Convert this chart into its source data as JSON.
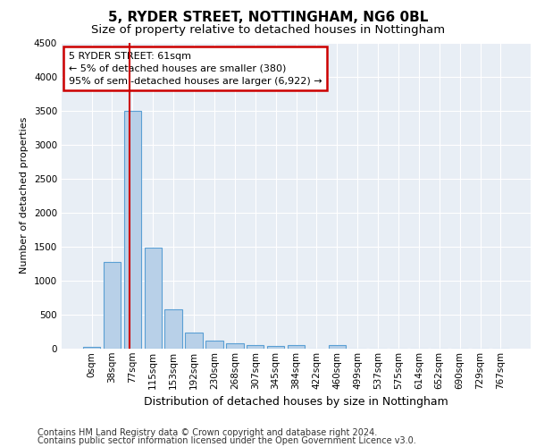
{
  "title1": "5, RYDER STREET, NOTTINGHAM, NG6 0BL",
  "title2": "Size of property relative to detached houses in Nottingham",
  "xlabel": "Distribution of detached houses by size in Nottingham",
  "ylabel": "Number of detached properties",
  "categories": [
    "0sqm",
    "38sqm",
    "77sqm",
    "115sqm",
    "153sqm",
    "192sqm",
    "230sqm",
    "268sqm",
    "307sqm",
    "345sqm",
    "384sqm",
    "422sqm",
    "460sqm",
    "499sqm",
    "537sqm",
    "575sqm",
    "614sqm",
    "652sqm",
    "690sqm",
    "729sqm",
    "767sqm"
  ],
  "values": [
    30,
    1270,
    3500,
    1480,
    575,
    235,
    115,
    85,
    55,
    35,
    50,
    0,
    55,
    0,
    0,
    0,
    0,
    0,
    0,
    0,
    0
  ],
  "bar_color": "#b8d0e8",
  "bar_edge_color": "#5a9fd4",
  "vline_x": 1.85,
  "vline_color": "#cc0000",
  "annotation_line1": "5 RYDER STREET: 61sqm",
  "annotation_line2": "← 5% of detached houses are smaller (380)",
  "annotation_line3": "95% of semi-detached houses are larger (6,922) →",
  "annotation_box_facecolor": "white",
  "annotation_box_edgecolor": "#cc0000",
  "ylim": [
    0,
    4500
  ],
  "yticks": [
    0,
    500,
    1000,
    1500,
    2000,
    2500,
    3000,
    3500,
    4000,
    4500
  ],
  "plot_bg_color": "#e8eef5",
  "grid_color": "white",
  "footer1": "Contains HM Land Registry data © Crown copyright and database right 2024.",
  "footer2": "Contains public sector information licensed under the Open Government Licence v3.0.",
  "title1_fontsize": 11,
  "title2_fontsize": 9.5,
  "xlabel_fontsize": 9,
  "ylabel_fontsize": 8,
  "tick_fontsize": 7.5,
  "annotation_fontsize": 8,
  "footer_fontsize": 7
}
